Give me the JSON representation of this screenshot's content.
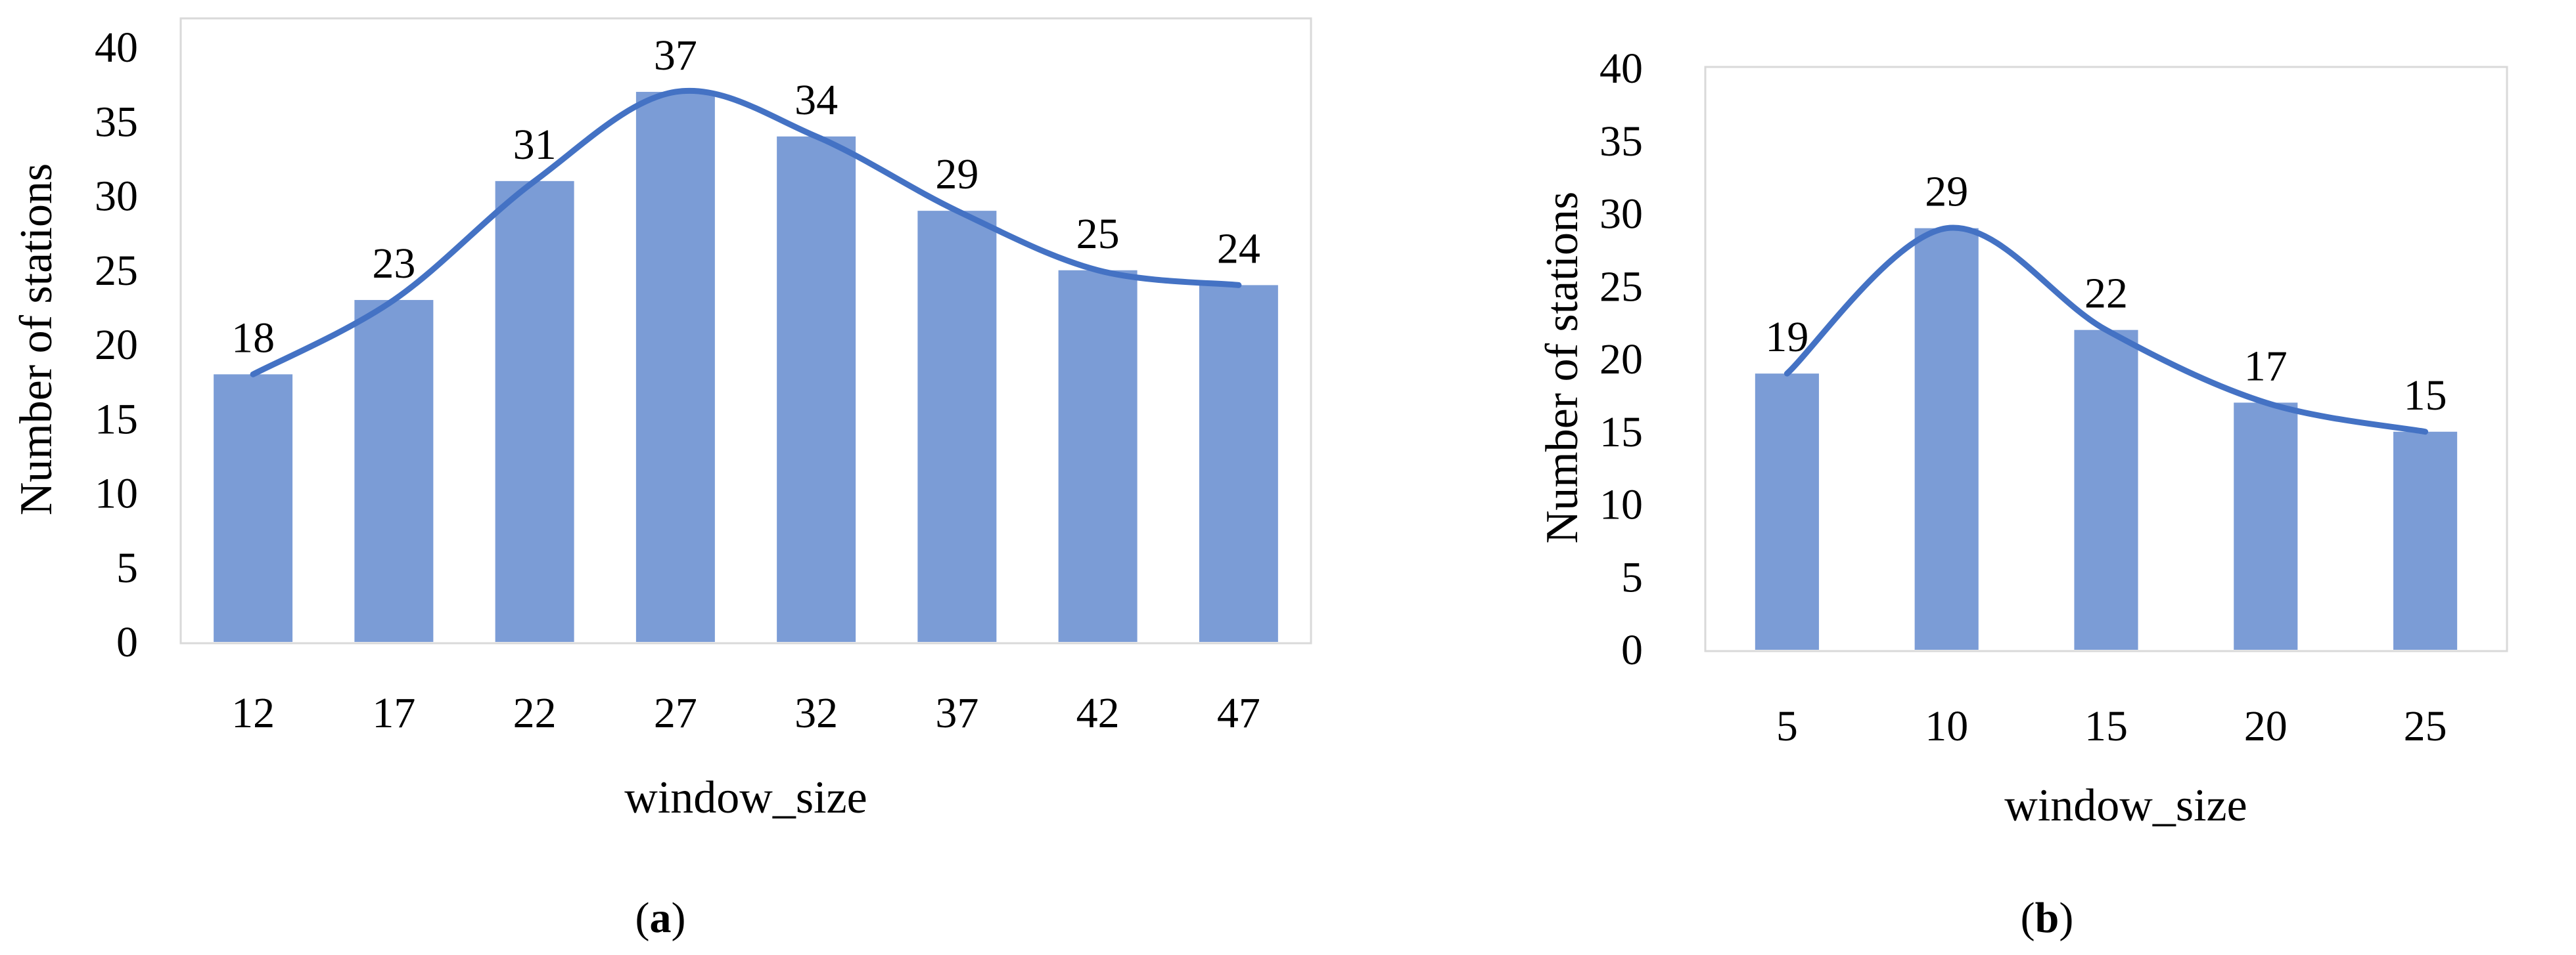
{
  "chart_data": [
    {
      "type": "bar",
      "panel": "a",
      "caption_letter": "a",
      "categories": [
        "12",
        "17",
        "22",
        "27",
        "32",
        "37",
        "42",
        "47"
      ],
      "values": [
        18,
        23,
        31,
        37,
        34,
        29,
        25,
        24
      ],
      "xlabel": "window_size",
      "ylabel": "Number of stations",
      "ylim": [
        0,
        40
      ],
      "yticks": [
        0,
        5,
        10,
        15,
        20,
        25,
        30,
        35,
        40
      ],
      "grid": false,
      "trendline": "smoothed line through bar tops",
      "bar_color": "#7b9cd6",
      "line_color": "#4472c4"
    },
    {
      "type": "bar",
      "panel": "b",
      "caption_letter": "b",
      "categories": [
        "5",
        "10",
        "15",
        "20",
        "25"
      ],
      "values": [
        19,
        29,
        22,
        17,
        15
      ],
      "xlabel": "window_size",
      "ylabel": "Number of stations",
      "ylim": [
        0,
        40
      ],
      "yticks": [
        0,
        5,
        10,
        15,
        20,
        25,
        30,
        35,
        40
      ],
      "grid": false,
      "trendline": "smoothed line through bar tops",
      "bar_color": "#7b9cd6",
      "line_color": "#4472c4"
    }
  ]
}
